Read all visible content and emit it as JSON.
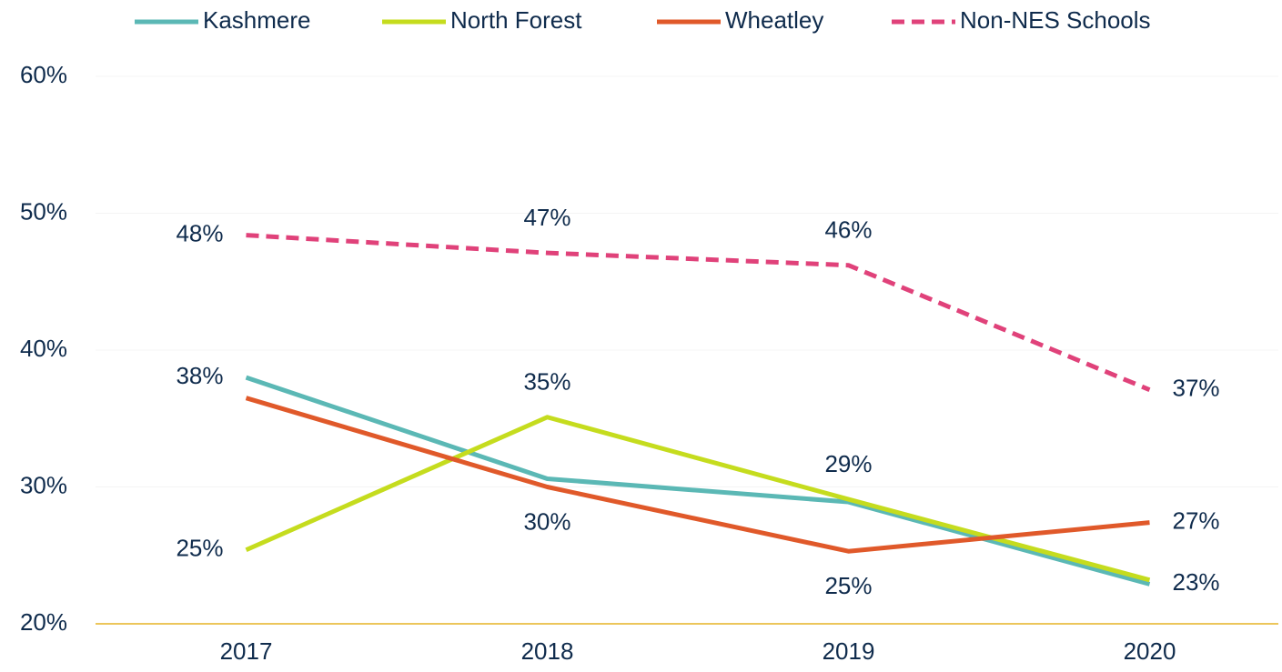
{
  "chart_data": {
    "type": "line",
    "categories": [
      "2017",
      "2018",
      "2019",
      "2020"
    ],
    "series": [
      {
        "name": "Kashmere",
        "color": "#5bb8b5",
        "values": [
          38.0,
          30.6,
          28.9,
          22.9
        ],
        "value_labels": [
          "38%",
          null,
          null,
          "23%"
        ]
      },
      {
        "name": "North Forest",
        "color": "#c5dc1e",
        "values": [
          25.4,
          35.1,
          29.1,
          23.2
        ],
        "value_labels": [
          "25%",
          "35%",
          "29%",
          null
        ]
      },
      {
        "name": "Wheatley",
        "color": "#e0592a",
        "values": [
          36.5,
          30.0,
          25.3,
          27.4
        ],
        "value_labels": [
          null,
          "30%",
          "25%",
          "27%"
        ]
      },
      {
        "name": "Non-NES Schools",
        "color": "#e0427a",
        "dashed": true,
        "values": [
          48.4,
          47.1,
          46.2,
          37.1
        ],
        "value_labels": [
          "48%",
          "47%",
          "46%",
          "37%"
        ]
      }
    ],
    "ylim": [
      20,
      60
    ],
    "yticks": [
      {
        "value": 20,
        "label": "20%"
      },
      {
        "value": 30,
        "label": "30%"
      },
      {
        "value": 40,
        "label": "40%"
      },
      {
        "value": 50,
        "label": "50%"
      },
      {
        "value": 60,
        "label": "60%"
      }
    ],
    "grid": true,
    "legend": "top"
  }
}
